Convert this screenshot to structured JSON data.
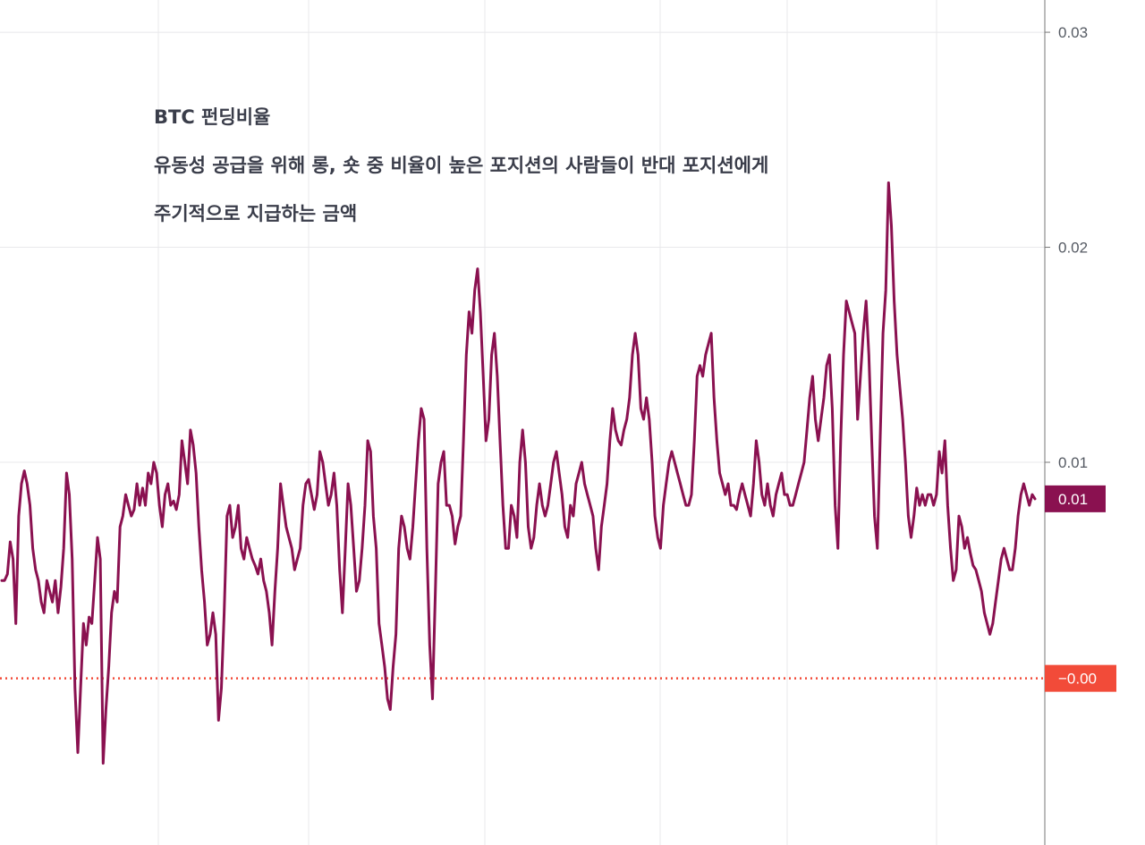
{
  "chart_data": {
    "type": "line",
    "annotations": [
      "BTC 펀딩비율",
      "유동성 공급을 위해 롱, 숏 중 비율이 높은 포지션의 사람들이 반대 포지션에게",
      "주기적으로 지급하는 금액"
    ],
    "y_ticks": [
      "0.03",
      "0.02",
      "0.01"
    ],
    "ylim": [
      -0.0078,
      0.0315
    ],
    "grid": true,
    "axis_position": "right",
    "series": [
      {
        "color": "#8a1150",
        "last_value_label": "0.01",
        "last_value": 0.0083,
        "values": [
          0.0045,
          0.0045,
          0.0048,
          0.0063,
          0.0055,
          0.0025,
          0.0075,
          0.009,
          0.0096,
          0.009,
          0.008,
          0.006,
          0.005,
          0.0045,
          0.0035,
          0.003,
          0.0045,
          0.004,
          0.0035,
          0.0045,
          0.003,
          0.0042,
          0.006,
          0.0095,
          0.0085,
          0.0055,
          -0.0005,
          -0.0035,
          -0.0005,
          0.0025,
          0.0015,
          0.0028,
          0.0025,
          0.0045,
          0.0065,
          0.0055,
          -0.004,
          -0.0015,
          0.0005,
          0.003,
          0.004,
          0.0035,
          0.007,
          0.0075,
          0.0085,
          0.008,
          0.0075,
          0.0078,
          0.009,
          0.008,
          0.0088,
          0.008,
          0.0095,
          0.009,
          0.01,
          0.0095,
          0.008,
          0.007,
          0.0085,
          0.009,
          0.008,
          0.0082,
          0.0078,
          0.0085,
          0.011,
          0.01,
          0.009,
          0.0115,
          0.0108,
          0.0095,
          0.007,
          0.005,
          0.0035,
          0.0015,
          0.002,
          0.003,
          0.002,
          -0.002,
          -0.0005,
          0.003,
          0.0075,
          0.008,
          0.0065,
          0.007,
          0.008,
          0.006,
          0.0055,
          0.0065,
          0.006,
          0.0055,
          0.0052,
          0.0048,
          0.0055,
          0.0045,
          0.004,
          0.003,
          0.0015,
          0.004,
          0.006,
          0.009,
          0.008,
          0.007,
          0.0065,
          0.006,
          0.005,
          0.0055,
          0.006,
          0.008,
          0.009,
          0.0092,
          0.0085,
          0.0078,
          0.0085,
          0.0105,
          0.01,
          0.009,
          0.008,
          0.0085,
          0.0095,
          0.008,
          0.005,
          0.003,
          0.006,
          0.009,
          0.008,
          0.006,
          0.004,
          0.0045,
          0.006,
          0.008,
          0.011,
          0.0105,
          0.0075,
          0.006,
          0.0025,
          0.0015,
          0.0005,
          -0.001,
          -0.0015,
          0.0005,
          0.002,
          0.006,
          0.0075,
          0.007,
          0.006,
          0.0055,
          0.007,
          0.009,
          0.011,
          0.0125,
          0.012,
          0.006,
          0.0015,
          -0.001,
          0.004,
          0.009,
          0.01,
          0.0105,
          0.008,
          0.008,
          0.0075,
          0.0062,
          0.007,
          0.0075,
          0.011,
          0.015,
          0.017,
          0.016,
          0.018,
          0.019,
          0.017,
          0.014,
          0.011,
          0.012,
          0.015,
          0.016,
          0.014,
          0.011,
          0.008,
          0.006,
          0.006,
          0.008,
          0.0075,
          0.0065,
          0.01,
          0.0115,
          0.01,
          0.007,
          0.006,
          0.0065,
          0.008,
          0.009,
          0.008,
          0.0075,
          0.008,
          0.009,
          0.01,
          0.0105,
          0.0095,
          0.0085,
          0.007,
          0.0065,
          0.008,
          0.0075,
          0.009,
          0.0095,
          0.01,
          0.009,
          0.0085,
          0.008,
          0.0075,
          0.006,
          0.005,
          0.007,
          0.008,
          0.009,
          0.011,
          0.0125,
          0.0115,
          0.011,
          0.0108,
          0.0115,
          0.012,
          0.013,
          0.015,
          0.016,
          0.015,
          0.0125,
          0.012,
          0.013,
          0.012,
          0.01,
          0.0075,
          0.0065,
          0.006,
          0.008,
          0.009,
          0.01,
          0.0105,
          0.01,
          0.0095,
          0.009,
          0.0085,
          0.008,
          0.008,
          0.0085,
          0.011,
          0.014,
          0.0145,
          0.014,
          0.015,
          0.0155,
          0.016,
          0.013,
          0.011,
          0.0095,
          0.009,
          0.0085,
          0.009,
          0.008,
          0.008,
          0.0078,
          0.0085,
          0.009,
          0.0085,
          0.008,
          0.0075,
          0.009,
          0.011,
          0.01,
          0.0085,
          0.008,
          0.009,
          0.008,
          0.0075,
          0.0085,
          0.009,
          0.0095,
          0.0085,
          0.0085,
          0.008,
          0.008,
          0.0085,
          0.009,
          0.0095,
          0.01,
          0.0115,
          0.013,
          0.014,
          0.012,
          0.011,
          0.012,
          0.013,
          0.0145,
          0.015,
          0.0125,
          0.008,
          0.006,
          0.011,
          0.015,
          0.0175,
          0.017,
          0.0165,
          0.016,
          0.012,
          0.014,
          0.016,
          0.0175,
          0.015,
          0.011,
          0.0075,
          0.006,
          0.011,
          0.016,
          0.018,
          0.023,
          0.021,
          0.0175,
          0.015,
          0.0135,
          0.012,
          0.01,
          0.0075,
          0.0065,
          0.0075,
          0.0088,
          0.008,
          0.0085,
          0.008,
          0.0085,
          0.0085,
          0.008,
          0.0085,
          0.0105,
          0.0095,
          0.011,
          0.008,
          0.006,
          0.0045,
          0.005,
          0.0075,
          0.007,
          0.006,
          0.0065,
          0.0058,
          0.0052,
          0.005,
          0.0045,
          0.004,
          0.003,
          0.0025,
          0.002,
          0.0025,
          0.0035,
          0.0045,
          0.0055,
          0.006,
          0.0055,
          0.005,
          0.005,
          0.006,
          0.0075,
          0.0085,
          0.009,
          0.0085,
          0.008,
          0.0085,
          0.0083
        ]
      }
    ],
    "reference_lines": [
      {
        "value": -5e-05,
        "style": "dotted",
        "color": "#f24b39",
        "label": "−0.00"
      }
    ],
    "colors": {
      "line": "#8a1150",
      "badge": "#8a1150",
      "zero_line": "#f24b39",
      "grid": "#e8e8eb",
      "axis": "#777777"
    }
  }
}
